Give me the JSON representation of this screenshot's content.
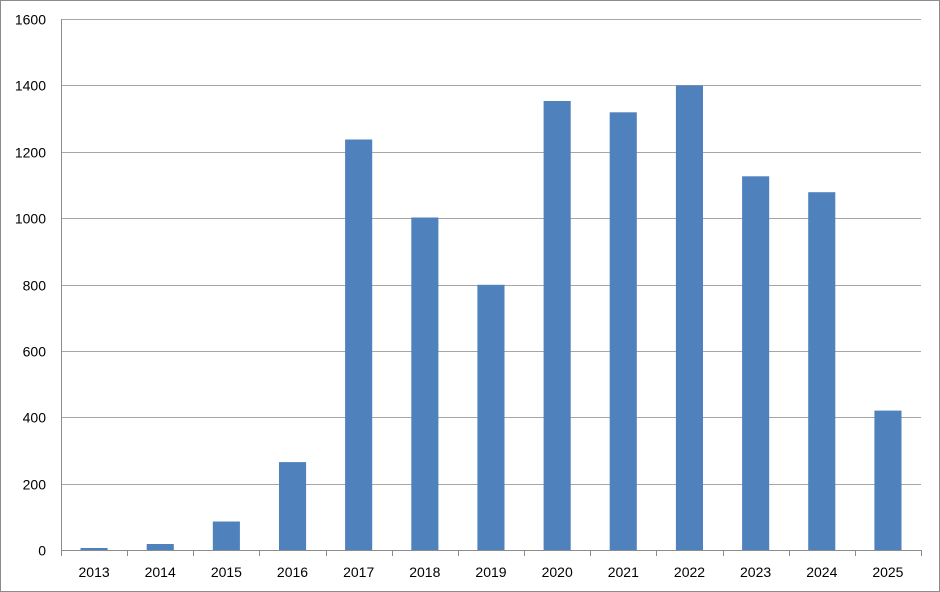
{
  "chart_data": {
    "type": "bar",
    "categories": [
      "2013",
      "2014",
      "2015",
      "2016",
      "2017",
      "2018",
      "2019",
      "2020",
      "2021",
      "2022",
      "2023",
      "2024",
      "2025"
    ],
    "values": [
      6,
      18,
      86,
      265,
      1237,
      1002,
      799,
      1353,
      1319,
      1400,
      1126,
      1078,
      420
    ],
    "title": "",
    "xlabel": "",
    "ylabel": "",
    "ylim": [
      0,
      1600
    ],
    "yticks": [
      "0",
      "200",
      "400",
      "600",
      "800",
      "1000",
      "1200",
      "1400",
      "1600"
    ],
    "grid": true,
    "legend": "none",
    "bar_color": "#4f81bd"
  }
}
